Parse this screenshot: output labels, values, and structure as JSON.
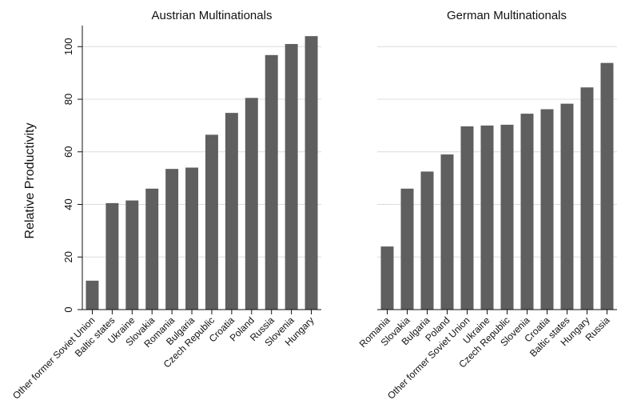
{
  "chart_data": [
    {
      "type": "bar",
      "title": "Austrian Multinationals",
      "ylabel": "Relative Productivity",
      "xlabel": "",
      "ylim": [
        0,
        108
      ],
      "yticks": [
        0,
        20,
        40,
        60,
        80,
        100
      ],
      "grid": true,
      "bar_color": "#5f5f5f",
      "categories": [
        "Other former Soviet Union",
        "Baltic states",
        "Ukraine",
        "Slovakia",
        "Romania",
        "Bulgaria",
        "Czech Republic",
        "Croatia",
        "Poland",
        "Russia",
        "Slovenia",
        "Hungary"
      ],
      "values": [
        11,
        40.5,
        41.5,
        46,
        53.5,
        54,
        66.5,
        74.8,
        80.5,
        96.8,
        101,
        104
      ]
    },
    {
      "type": "bar",
      "title": "German Multinationals",
      "ylabel": "",
      "xlabel": "",
      "ylim": [
        0,
        108
      ],
      "yticks": [
        0,
        20,
        40,
        60,
        80,
        100
      ],
      "grid": true,
      "bar_color": "#5f5f5f",
      "categories": [
        "Romania",
        "Slovakia",
        "Bulgaria",
        "Poland",
        "Other former Soviet Union",
        "Ukraine",
        "Czech Republic",
        "Slovenia",
        "Croatia",
        "Baltic states",
        "Hungary",
        "Russia"
      ],
      "values": [
        24,
        46,
        52.5,
        59,
        69.7,
        70,
        70.3,
        74.5,
        76.2,
        78.3,
        84.5,
        93.8
      ]
    }
  ]
}
